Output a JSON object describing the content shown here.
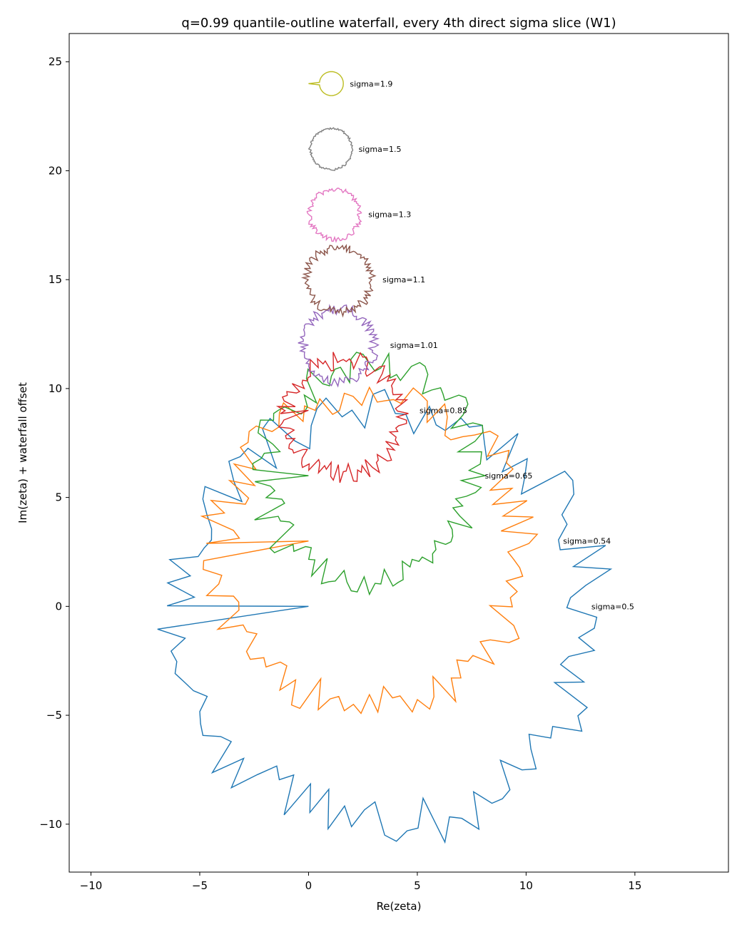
{
  "chart_data": {
    "type": "line",
    "title": "q=0.99 quantile-outline waterfall, every 4th direct sigma slice (W1)",
    "xlabel": "Re(zeta)",
    "ylabel": "Im(zeta) + waterfall offset",
    "xlim": [
      -11,
      19.3
    ],
    "ylim": [
      -12.2,
      26.3
    ],
    "xticks": [
      -10,
      -5,
      0,
      5,
      10,
      15
    ],
    "yticks": [
      -10,
      -5,
      0,
      5,
      10,
      15,
      20,
      25
    ],
    "xtick_labels": [
      "−10",
      "−5",
      "0",
      "5",
      "10",
      "15"
    ],
    "ytick_labels": [
      "−10",
      "−5",
      "0",
      "5",
      "10",
      "15",
      "20",
      "25"
    ],
    "grid": false,
    "legend": "none",
    "series": [
      {
        "name": "sigma=0.5",
        "label": "sigma=0.5",
        "color": "#1f77b4",
        "offset": 0,
        "radius": 9.5,
        "cx": 3.5,
        "cy": -0.5,
        "jag": 1.2,
        "label_x": 13.0,
        "label_y": 0.0
      },
      {
        "name": "sigma=0.54",
        "label": "sigma=0.54",
        "color": "#ff7f0e",
        "offset": 3,
        "radius": 7.0,
        "cx": 2.8,
        "cy": -0.5,
        "jag": 1.0,
        "label_x": 11.7,
        "label_y": 3.0
      },
      {
        "name": "sigma=0.65",
        "label": "sigma=0.65",
        "color": "#2ca02c",
        "offset": 6,
        "radius": 4.9,
        "cx": 2.8,
        "cy": 0.0,
        "jag": 0.8,
        "label_x": 8.1,
        "label_y": 6.0
      },
      {
        "name": "sigma=0.85",
        "label": "sigma=0.85",
        "color": "#d62728",
        "offset": 9,
        "radius": 2.6,
        "cx": 1.6,
        "cy": -0.3,
        "jag": 0.45,
        "label_x": 5.1,
        "label_y": 9.0
      },
      {
        "name": "sigma=1.01",
        "label": "sigma=1.01",
        "color": "#9467bd",
        "offset": 12,
        "radius": 1.65,
        "cx": 1.35,
        "cy": 0.0,
        "jag": 0.25,
        "label_x": 3.75,
        "label_y": 12.0
      },
      {
        "name": "sigma=1.1",
        "label": "sigma=1.1",
        "color": "#8c564b",
        "offset": 15,
        "radius": 1.5,
        "cx": 1.4,
        "cy": 0.0,
        "jag": 0.2,
        "label_x": 3.4,
        "label_y": 15.0
      },
      {
        "name": "sigma=1.3",
        "label": "sigma=1.3",
        "color": "#e377c2",
        "offset": 18,
        "radius": 1.15,
        "cx": 1.2,
        "cy": 0.0,
        "jag": 0.12,
        "label_x": 2.75,
        "label_y": 18.0
      },
      {
        "name": "sigma=1.5",
        "label": "sigma=1.5",
        "color": "#7f7f7f",
        "offset": 21,
        "radius": 0.95,
        "cx": 1.05,
        "cy": 0.0,
        "jag": 0.05,
        "label_x": 2.3,
        "label_y": 21.0
      },
      {
        "name": "sigma=1.9",
        "label": "sigma=1.9",
        "color": "#bcbd22",
        "offset": 24,
        "radius": 0.55,
        "cx": 1.05,
        "cy": 0.0,
        "jag": 0.0,
        "label_x": 1.9,
        "label_y": 24.0
      }
    ]
  }
}
